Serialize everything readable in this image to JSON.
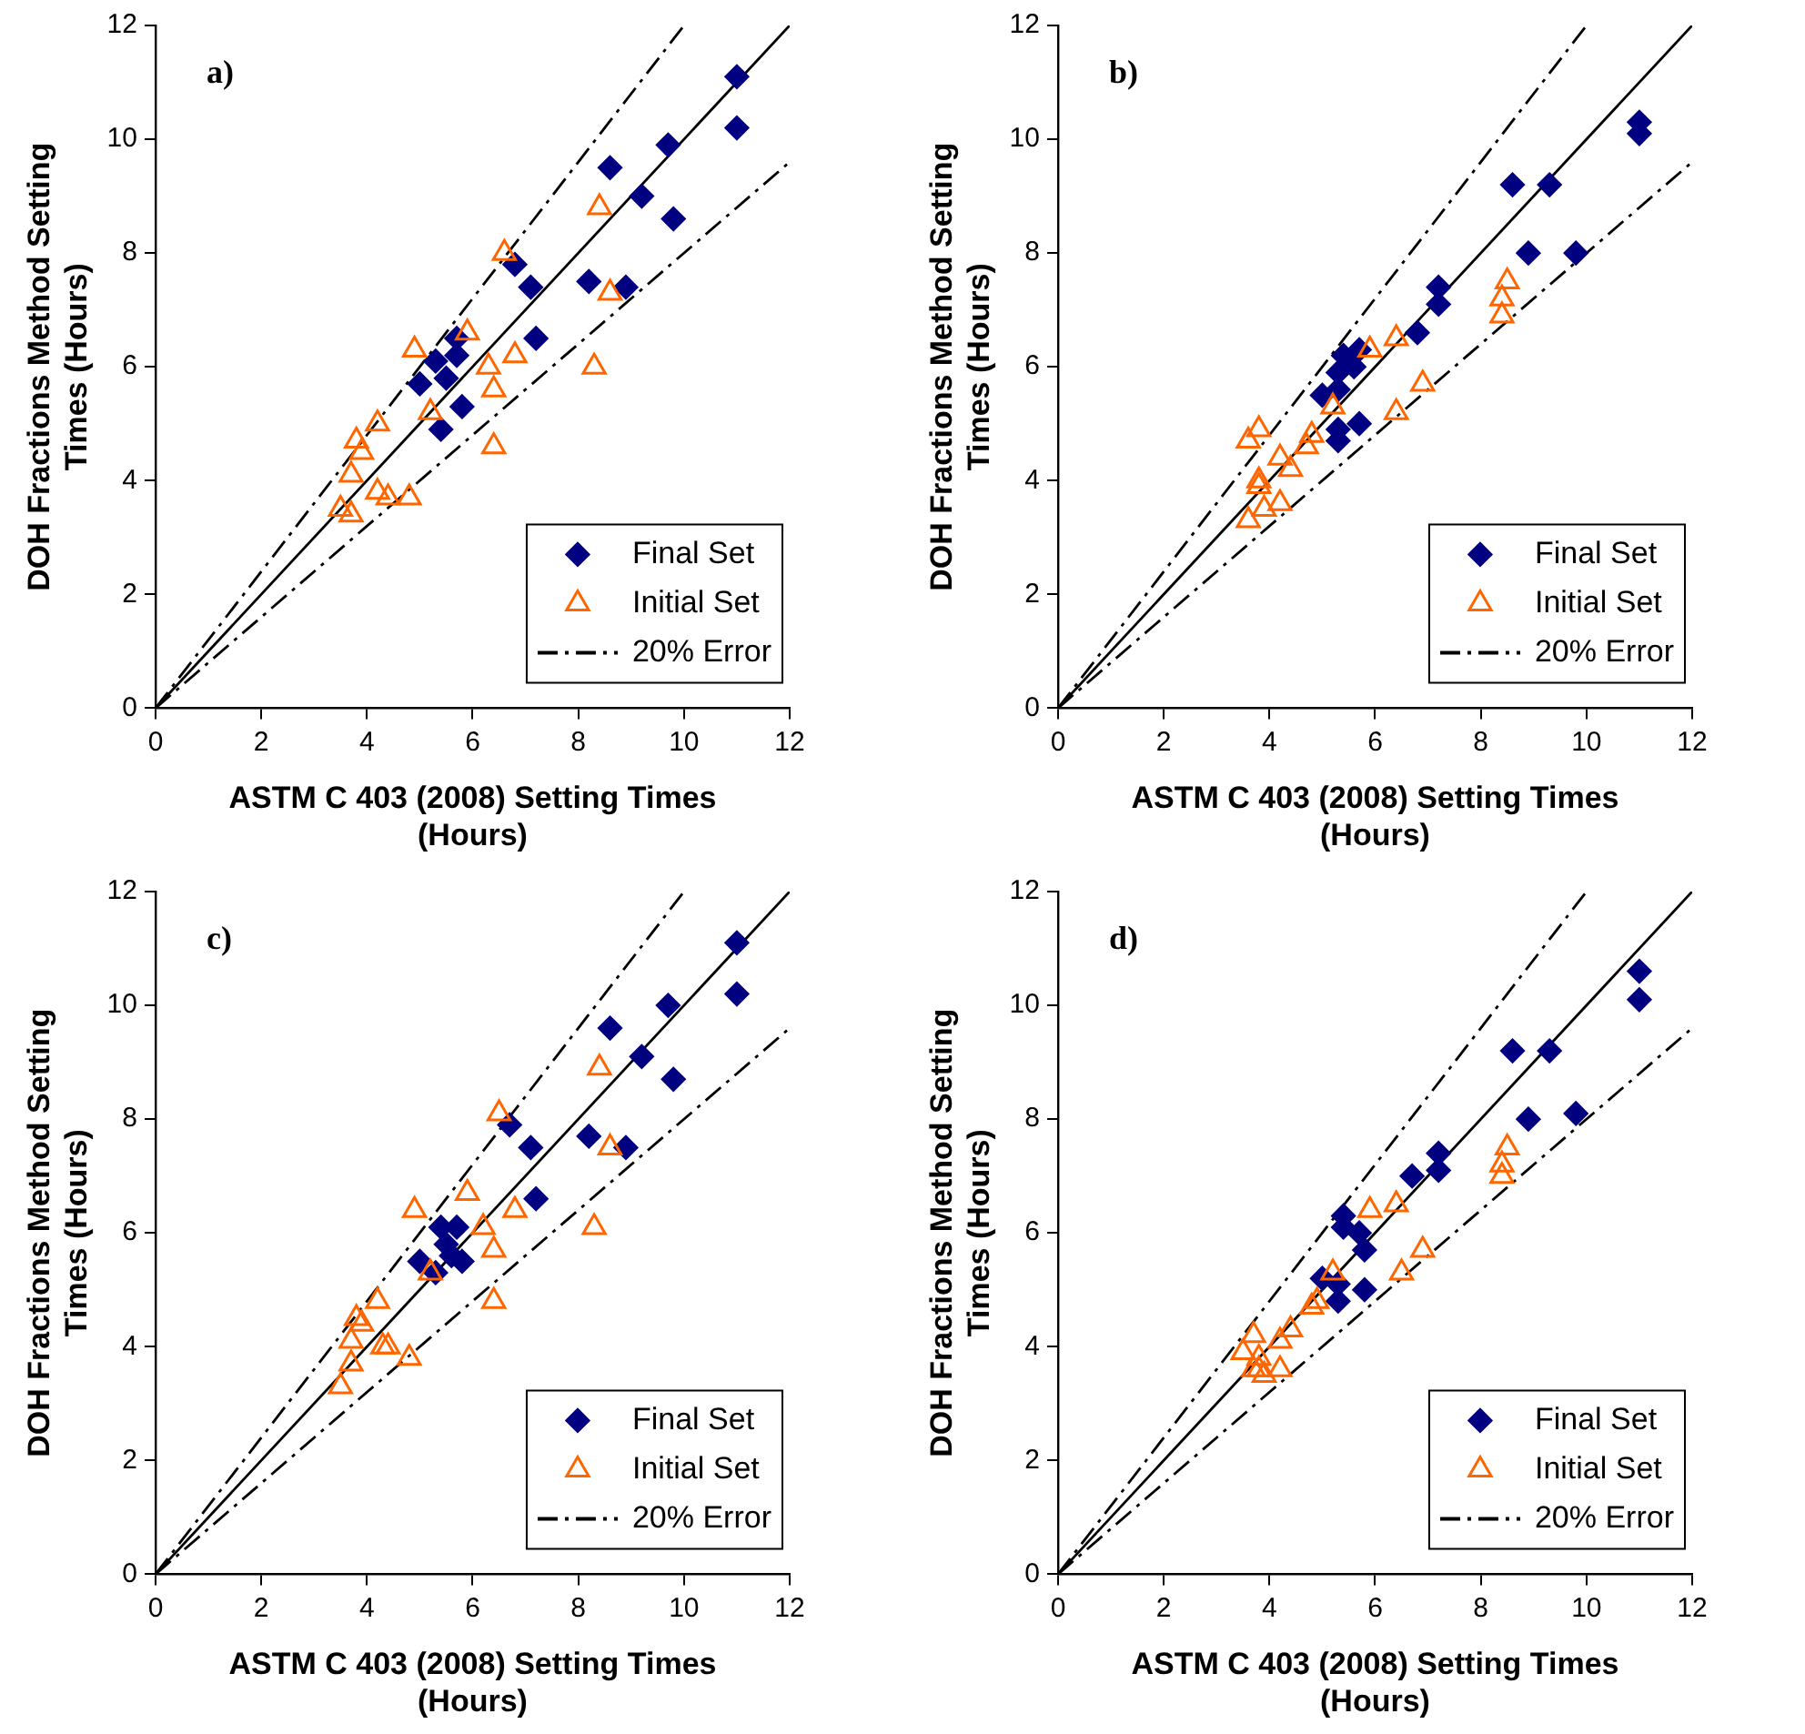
{
  "chart_data": [
    {
      "type": "scatter",
      "title": "a)",
      "xlabel": "ASTM C 403 (2008) Setting Times (Hours)",
      "ylabel": "DOH Fractions Method Setting Times (Hours)",
      "xlim": [
        0,
        12
      ],
      "ylim": [
        0,
        12
      ],
      "xticks": [
        0,
        2,
        4,
        6,
        8,
        10,
        12
      ],
      "yticks": [
        0,
        2,
        4,
        6,
        8,
        10,
        12
      ],
      "legend": "bottom right",
      "series": [
        {
          "name": "Final Set",
          "color": "#000080",
          "marker": "diamond",
          "x": [
            11.0,
            11.0,
            9.7,
            8.6,
            9.2,
            9.8,
            6.8,
            7.1,
            8.2,
            8.9,
            7.2,
            5.7,
            5.3,
            5.0,
            5.5,
            5.8,
            5.4,
            5.7
          ],
          "values": [
            11.1,
            10.2,
            9.9,
            9.5,
            9.0,
            8.6,
            7.8,
            7.4,
            7.5,
            7.4,
            6.5,
            6.2,
            6.1,
            5.7,
            5.8,
            5.3,
            4.9,
            6.5
          ]
        },
        {
          "name": "Initial Set",
          "color": "#ff6600",
          "marker": "triangle",
          "x": [
            6.6,
            8.4,
            8.6,
            4.9,
            5.9,
            6.8,
            6.3,
            6.4,
            8.3,
            5.2,
            4.2,
            3.8,
            3.9,
            3.7,
            4.2,
            4.4,
            4.8,
            3.5,
            3.7,
            6.4
          ],
          "values": [
            8.0,
            8.8,
            7.3,
            6.3,
            6.6,
            6.2,
            6.0,
            5.6,
            6.0,
            5.2,
            5.0,
            4.7,
            4.5,
            4.1,
            3.8,
            3.7,
            3.7,
            3.5,
            3.4,
            4.6
          ]
        },
        {
          "type": "line",
          "color": "#000000",
          "line_style": "solid",
          "x": [
            0,
            12
          ],
          "values": [
            0,
            12
          ]
        },
        {
          "type": "line",
          "name": "20% Error",
          "color": "#000000",
          "line_style": "dashed",
          "x": [
            0,
            10
          ],
          "values": [
            0,
            12
          ]
        },
        {
          "type": "line",
          "color": "#000000",
          "line_style": "dashed",
          "x": [
            0,
            12
          ],
          "values": [
            0,
            9.6
          ]
        }
      ]
    },
    {
      "type": "scatter",
      "title": "b)",
      "xlabel": "ASTM C 403 (2008) Setting Times (Hours)",
      "ylabel": "DOH Fractions Method Setting Times (Hours)",
      "xlim": [
        0,
        12
      ],
      "ylim": [
        0,
        12
      ],
      "xticks": [
        0,
        2,
        4,
        6,
        8,
        10,
        12
      ],
      "yticks": [
        0,
        2,
        4,
        6,
        8,
        10,
        12
      ],
      "legend": "bottom right",
      "series": [
        {
          "name": "Final Set",
          "color": "#000080",
          "marker": "diamond",
          "x": [
            11.0,
            11.0,
            8.6,
            9.3,
            8.9,
            9.8,
            7.2,
            7.2,
            6.8,
            5.4,
            5.7,
            5.3,
            5.6,
            5.0,
            5.3,
            5.3,
            5.7,
            5.3
          ],
          "values": [
            10.1,
            10.3,
            9.2,
            9.2,
            8.0,
            8.0,
            7.4,
            7.1,
            6.6,
            6.2,
            6.3,
            5.9,
            6.0,
            5.5,
            5.6,
            4.9,
            5.0,
            4.7
          ]
        },
        {
          "name": "Initial Set",
          "color": "#ff6600",
          "marker": "triangle",
          "x": [
            8.5,
            8.4,
            8.4,
            5.9,
            6.4,
            6.9,
            6.4,
            5.2,
            4.8,
            4.7,
            4.2,
            4.4,
            3.6,
            3.8,
            3.8,
            3.8,
            3.9,
            4.2,
            3.6
          ],
          "values": [
            7.5,
            7.2,
            6.9,
            6.3,
            6.5,
            5.7,
            5.2,
            5.3,
            4.8,
            4.6,
            4.4,
            4.2,
            4.7,
            4.9,
            4.0,
            3.9,
            3.5,
            3.6,
            3.3
          ]
        },
        {
          "type": "line",
          "color": "#000000",
          "line_style": "solid",
          "x": [
            0,
            12
          ],
          "values": [
            0,
            12
          ]
        },
        {
          "type": "line",
          "name": "20% Error",
          "color": "#000000",
          "line_style": "dashed",
          "x": [
            0,
            10
          ],
          "values": [
            0,
            12
          ]
        },
        {
          "type": "line",
          "color": "#000000",
          "line_style": "dashed",
          "x": [
            0,
            12
          ],
          "values": [
            0,
            9.6
          ]
        }
      ]
    },
    {
      "type": "scatter",
      "title": "c)",
      "xlabel": "ASTM C 403 (2008) Setting Times (Hours)",
      "ylabel": "DOH Fractions Method Setting Times (Hours)",
      "xlim": [
        0,
        12
      ],
      "ylim": [
        0,
        12
      ],
      "xticks": [
        0,
        2,
        4,
        6,
        8,
        10,
        12
      ],
      "yticks": [
        0,
        2,
        4,
        6,
        8,
        10,
        12
      ],
      "legend": "bottom right",
      "series": [
        {
          "name": "Final Set",
          "color": "#000080",
          "marker": "diamond",
          "x": [
            11.0,
            11.0,
            9.7,
            8.6,
            9.2,
            9.8,
            6.7,
            7.1,
            8.2,
            8.9,
            7.2,
            5.4,
            5.7,
            5.5,
            5.0,
            5.3,
            5.8,
            5.6
          ],
          "values": [
            11.1,
            10.2,
            10.0,
            9.6,
            9.1,
            8.7,
            7.9,
            7.5,
            7.7,
            7.5,
            6.6,
            6.1,
            6.1,
            5.8,
            5.5,
            5.3,
            5.5,
            5.6
          ]
        },
        {
          "name": "Initial Set",
          "color": "#ff6600",
          "marker": "triangle",
          "x": [
            6.5,
            8.4,
            8.6,
            4.9,
            5.9,
            6.8,
            6.2,
            6.4,
            8.3,
            5.2,
            4.2,
            3.8,
            3.9,
            3.7,
            4.3,
            4.4,
            4.8,
            3.7,
            3.5,
            6.4
          ],
          "values": [
            8.1,
            8.9,
            7.5,
            6.4,
            6.7,
            6.4,
            6.1,
            5.7,
            6.1,
            5.3,
            4.8,
            4.5,
            4.4,
            4.1,
            4.0,
            4.0,
            3.8,
            3.7,
            3.3,
            4.8
          ]
        },
        {
          "type": "line",
          "color": "#000000",
          "line_style": "solid",
          "x": [
            0,
            12
          ],
          "values": [
            0,
            12
          ]
        },
        {
          "type": "line",
          "name": "20% Error",
          "color": "#000000",
          "line_style": "dashed",
          "x": [
            0,
            10
          ],
          "values": [
            0,
            12
          ]
        },
        {
          "type": "line",
          "color": "#000000",
          "line_style": "dashed",
          "x": [
            0,
            12
          ],
          "values": [
            0,
            9.6
          ]
        }
      ]
    },
    {
      "type": "scatter",
      "title": "d)",
      "xlabel": "ASTM C 403 (2008) Setting Times (Hours)",
      "ylabel": "DOH Fractions Method Setting Times (Hours)",
      "xlim": [
        0,
        12
      ],
      "ylim": [
        0,
        12
      ],
      "xticks": [
        0,
        2,
        4,
        6,
        8,
        10,
        12
      ],
      "yticks": [
        0,
        2,
        4,
        6,
        8,
        10,
        12
      ],
      "legend": "bottom right",
      "series": [
        {
          "name": "Final Set",
          "color": "#000080",
          "marker": "diamond",
          "x": [
            11.0,
            11.0,
            8.6,
            9.3,
            8.9,
            9.8,
            7.2,
            7.2,
            6.7,
            5.4,
            5.4,
            5.7,
            5.8,
            5.0,
            5.3,
            5.8,
            5.3
          ],
          "values": [
            10.6,
            10.1,
            9.2,
            9.2,
            8.0,
            8.1,
            7.4,
            7.1,
            7.0,
            6.3,
            6.1,
            6.0,
            5.7,
            5.2,
            5.1,
            5.0,
            4.8
          ]
        },
        {
          "name": "Initial Set",
          "color": "#ff6600",
          "marker": "triangle",
          "x": [
            8.5,
            8.4,
            8.4,
            5.9,
            6.4,
            6.9,
            6.5,
            5.2,
            4.9,
            4.8,
            4.2,
            4.4,
            3.5,
            3.7,
            3.8,
            3.8,
            3.7,
            4.2,
            3.9
          ],
          "values": [
            7.5,
            7.2,
            7.0,
            6.4,
            6.5,
            5.7,
            5.3,
            5.3,
            4.8,
            4.7,
            4.1,
            4.3,
            3.9,
            4.2,
            3.8,
            3.6,
            3.6,
            3.6,
            3.5
          ]
        },
        {
          "type": "line",
          "color": "#000000",
          "line_style": "solid",
          "x": [
            0,
            12
          ],
          "values": [
            0,
            12
          ]
        },
        {
          "type": "line",
          "name": "20% Error",
          "color": "#000000",
          "line_style": "dashed",
          "x": [
            0,
            10
          ],
          "values": [
            0,
            12
          ]
        },
        {
          "type": "line",
          "color": "#000000",
          "line_style": "dashed",
          "x": [
            0,
            12
          ],
          "values": [
            0,
            9.6
          ]
        }
      ]
    }
  ]
}
